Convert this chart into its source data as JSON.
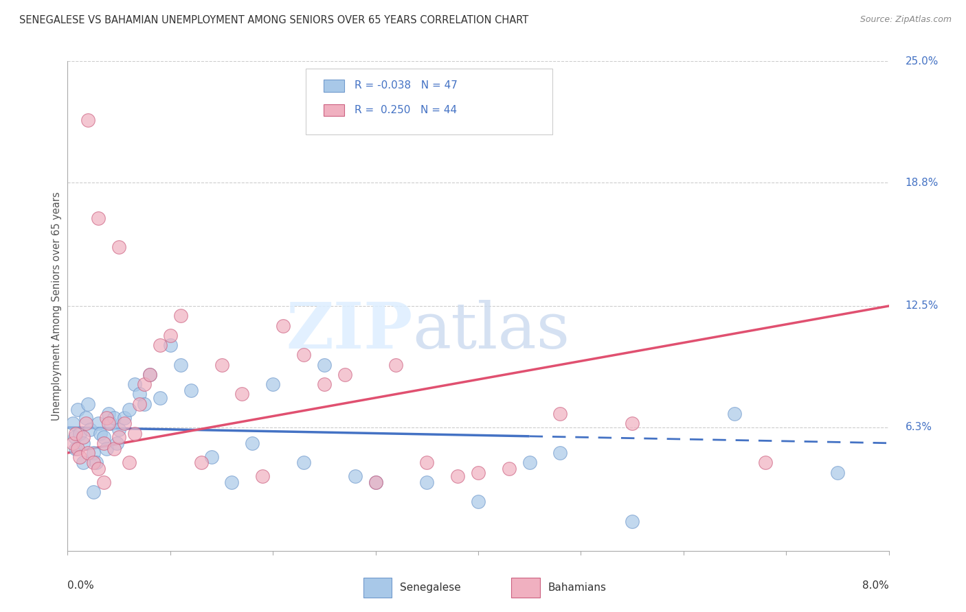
{
  "title": "SENEGALESE VS BAHAMIAN UNEMPLOYMENT AMONG SENIORS OVER 65 YEARS CORRELATION CHART",
  "source": "Source: ZipAtlas.com",
  "ylabel": "Unemployment Among Seniors over 65 years",
  "xmin": 0.0,
  "xmax": 8.0,
  "ymin": 0.0,
  "ymax": 25.0,
  "color_senegalese": "#a8c8e8",
  "color_bahamian": "#f0b0c0",
  "color_senegalese_line": "#4472c4",
  "color_bahamian_line": "#e05070",
  "color_senegalese_edge": "#7099cc",
  "color_bahamian_edge": "#cc6080",
  "sen_line_x0": 0.0,
  "sen_line_x1": 8.0,
  "sen_line_y0": 6.3,
  "sen_line_y1": 5.5,
  "sen_solid_end": 4.5,
  "bah_line_x0": 0.0,
  "bah_line_x1": 8.0,
  "bah_line_y0": 5.0,
  "bah_line_y1": 12.5,
  "right_yticks": [
    0.0,
    6.3,
    12.5,
    18.8,
    25.0
  ],
  "right_ytick_labels": [
    "",
    "6.3%",
    "12.5%",
    "18.8%",
    "25.0%"
  ],
  "gridline_y": [
    6.3,
    12.5,
    18.8,
    25.0
  ],
  "senegalese_x": [
    0.05,
    0.07,
    0.08,
    0.1,
    0.12,
    0.15,
    0.18,
    0.2,
    0.22,
    0.25,
    0.28,
    0.3,
    0.32,
    0.35,
    0.38,
    0.4,
    0.42,
    0.45,
    0.48,
    0.5,
    0.55,
    0.6,
    0.65,
    0.7,
    0.75,
    0.8,
    0.9,
    1.0,
    1.1,
    1.2,
    1.4,
    1.6,
    1.8,
    2.0,
    2.3,
    2.5,
    2.8,
    3.0,
    3.5,
    4.0,
    4.5,
    4.8,
    5.5,
    6.5,
    7.5,
    0.15,
    0.25
  ],
  "senegalese_y": [
    6.5,
    5.8,
    5.2,
    7.2,
    6.0,
    5.5,
    6.8,
    7.5,
    6.2,
    5.0,
    4.5,
    6.5,
    6.0,
    5.8,
    5.2,
    7.0,
    6.5,
    6.8,
    5.5,
    6.2,
    6.8,
    7.2,
    8.5,
    8.0,
    7.5,
    9.0,
    7.8,
    10.5,
    9.5,
    8.2,
    4.8,
    3.5,
    5.5,
    8.5,
    4.5,
    9.5,
    3.8,
    3.5,
    3.5,
    2.5,
    4.5,
    5.0,
    1.5,
    7.0,
    4.0,
    4.5,
    3.0
  ],
  "bahamian_x": [
    0.05,
    0.08,
    0.1,
    0.12,
    0.15,
    0.18,
    0.2,
    0.25,
    0.3,
    0.35,
    0.38,
    0.4,
    0.45,
    0.5,
    0.55,
    0.6,
    0.65,
    0.7,
    0.75,
    0.8,
    0.9,
    1.0,
    1.1,
    1.3,
    1.5,
    1.7,
    1.9,
    2.1,
    2.3,
    2.5,
    2.7,
    3.0,
    3.2,
    3.5,
    3.8,
    4.0,
    4.3,
    4.8,
    5.5,
    6.8,
    0.2,
    0.3,
    0.35,
    0.5
  ],
  "bahamian_y": [
    5.5,
    6.0,
    5.2,
    4.8,
    5.8,
    6.5,
    5.0,
    4.5,
    4.2,
    5.5,
    6.8,
    6.5,
    5.2,
    5.8,
    6.5,
    4.5,
    6.0,
    7.5,
    8.5,
    9.0,
    10.5,
    11.0,
    12.0,
    4.5,
    9.5,
    8.0,
    3.8,
    11.5,
    10.0,
    8.5,
    9.0,
    3.5,
    9.5,
    4.5,
    3.8,
    4.0,
    4.2,
    7.0,
    6.5,
    4.5,
    22.0,
    17.0,
    3.5,
    15.5
  ]
}
